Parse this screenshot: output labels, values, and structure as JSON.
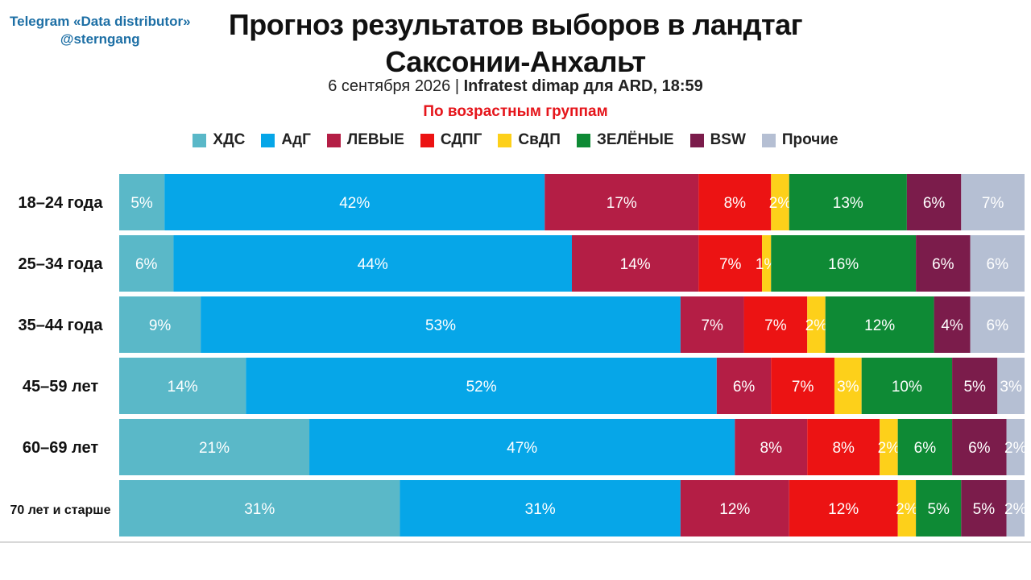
{
  "source": {
    "line1": "Telegram «Data distributor»",
    "line2": "@sterngang"
  },
  "colors": {
    "ХДС": "#5ab8c8",
    "АдГ": "#06a6e8",
    "ЛЕВЫЕ": "#b41e45",
    "СДПГ": "#ec1313",
    "СвДП": "#fdd01a",
    "ЗЕЛЁНЫЕ": "#0e8a35",
    "BSW": "#7b1c4b",
    "Прочие": "#b5bfd3",
    "label_text": "#ffffff",
    "separator": "#ffffff"
  },
  "chart_data": {
    "type": "bar",
    "orientation": "horizontal",
    "stacked": true,
    "title": "Прогноз результатов выборов в ландтаг Саксонии-Анхальт",
    "title_lines": [
      "Прогноз результатов выборов в ландтаг",
      "Саксонии-Анхальт"
    ],
    "subtitle_date": "6 сентября 2026 | ",
    "subtitle_source": "Infratest dimap для ARD, 18:59",
    "subtitle2": "По возрастным группам",
    "legend_position": "top",
    "grid": false,
    "xlim": [
      0,
      100
    ],
    "unit": "%",
    "categories": [
      "18–24 года",
      "25–34 года",
      "35–44 года",
      "45–59 лет",
      "60–69 лет",
      "70 лет и старше"
    ],
    "series": [
      {
        "name": "ХДС",
        "values": [
          5,
          6,
          9,
          14,
          21,
          31
        ]
      },
      {
        "name": "АдГ",
        "values": [
          42,
          44,
          53,
          52,
          47,
          31
        ]
      },
      {
        "name": "ЛЕВЫЕ",
        "values": [
          17,
          14,
          7,
          6,
          8,
          12
        ]
      },
      {
        "name": "СДПГ",
        "values": [
          8,
          7,
          7,
          7,
          8,
          12
        ]
      },
      {
        "name": "СвДП",
        "values": [
          2,
          1,
          2,
          3,
          2,
          2
        ]
      },
      {
        "name": "ЗЕЛЁНЫЕ",
        "values": [
          13,
          16,
          12,
          10,
          6,
          5
        ]
      },
      {
        "name": "BSW",
        "values": [
          6,
          6,
          4,
          5,
          6,
          5
        ]
      },
      {
        "name": "Прочие",
        "values": [
          7,
          6,
          6,
          3,
          2,
          2
        ]
      }
    ]
  }
}
